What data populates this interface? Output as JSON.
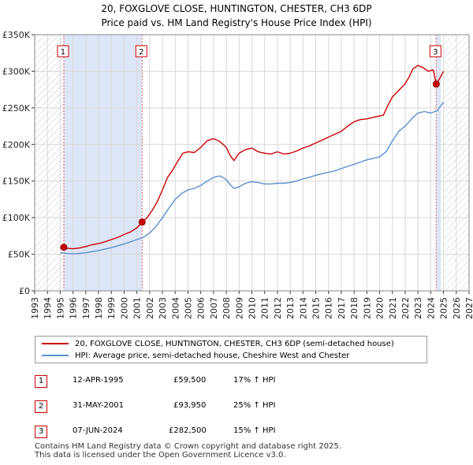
{
  "title": "20, FOXGLOVE CLOSE, HUNTINGTON, CHESTER, CH3 6DP",
  "subtitle": "Price paid vs. HM Land Registry's House Price Index (HPI)",
  "legend": {
    "property": "20, FOXGLOVE CLOSE, HUNTINGTON, CHESTER, CH3 6DP (semi-detached house)",
    "hpi": "HPI: Average price, semi-detached house, Cheshire West and Chester"
  },
  "sales": [
    {
      "num": "1",
      "date": "12-APR-1995",
      "price": "£59,500",
      "hpi": "17% ↑ HPI"
    },
    {
      "num": "2",
      "date": "31-MAY-2001",
      "price": "£93,950",
      "hpi": "25% ↑ HPI"
    },
    {
      "num": "3",
      "date": "07-JUN-2024",
      "price": "£282,500",
      "hpi": "15% ↑ HPI"
    }
  ],
  "footer": [
    "Contains HM Land Registry data © Crown copyright and database right 2025.",
    "This data is licensed under the Open Government Licence v3.0."
  ],
  "chart_data": {
    "type": "line",
    "xlim": [
      1993,
      2027
    ],
    "ylim": [
      0,
      350000
    ],
    "xticks": [
      1993,
      1994,
      1995,
      1996,
      1997,
      1998,
      1999,
      2000,
      2001,
      2002,
      2003,
      2004,
      2005,
      2006,
      2007,
      2008,
      2009,
      2010,
      2011,
      2012,
      2013,
      2014,
      2015,
      2016,
      2017,
      2018,
      2019,
      2020,
      2021,
      2022,
      2023,
      2024,
      2025,
      2026,
      2027
    ],
    "yticks": [
      {
        "value": 0,
        "label": "£0"
      },
      {
        "value": 50000,
        "label": "£50K"
      },
      {
        "value": 100000,
        "label": "£100K"
      },
      {
        "value": 150000,
        "label": "£150K"
      },
      {
        "value": 200000,
        "label": "£200K"
      },
      {
        "value": 250000,
        "label": "£250K"
      },
      {
        "value": 300000,
        "label": "£300K"
      },
      {
        "value": 350000,
        "label": "£350K"
      }
    ],
    "grid": true,
    "colors": {
      "property": "#cc0000",
      "hpi": "#5b8fd0",
      "shade": "#dde6f7",
      "vline": "#e06060"
    },
    "shaded_ranges": [
      [
        1995.28,
        2001.41
      ],
      [
        2024.43,
        2024.8
      ]
    ],
    "hatched_ranges": [
      [
        1993,
        1995.28
      ],
      [
        2025.0,
        2027
      ]
    ],
    "sales_markers": [
      {
        "label": "1",
        "x": 1995.28,
        "y": 59500
      },
      {
        "label": "2",
        "x": 2001.41,
        "y": 93950
      },
      {
        "label": "3",
        "x": 2024.43,
        "y": 282500
      }
    ],
    "series": [
      {
        "name": "20, FOXGLOVE CLOSE, HUNTINGTON, CHESTER, CH3 6DP (semi-detached house)",
        "x": [
          1995.28,
          1995.5,
          1996,
          1996.5,
          1997,
          1997.5,
          1998,
          1998.5,
          1999,
          1999.5,
          2000,
          2000.5,
          2001,
          2001.41,
          2001.8,
          2002.2,
          2002.6,
          2003,
          2003.4,
          2003.8,
          2004.2,
          2004.6,
          2005,
          2005.5,
          2006,
          2006.5,
          2007,
          2007.5,
          2008,
          2008.3,
          2008.6,
          2009,
          2009.5,
          2010,
          2010.5,
          2011,
          2011.5,
          2012,
          2012.5,
          2013,
          2013.5,
          2014,
          2014.5,
          2015,
          2015.5,
          2016,
          2016.5,
          2017,
          2017.5,
          2018,
          2018.5,
          2019,
          2019.5,
          2020,
          2020.3,
          2020.6,
          2021,
          2021.5,
          2022,
          2022.3,
          2022.6,
          2023,
          2023.4,
          2023.8,
          2024.2,
          2024.43,
          2024.7,
          2025
        ],
        "y": [
          59500,
          58000,
          57500,
          58500,
          60500,
          63000,
          64500,
          67000,
          70000,
          73000,
          77000,
          80500,
          86000,
          93950,
          100000,
          110000,
          122000,
          138000,
          155000,
          165000,
          177000,
          188000,
          190000,
          189000,
          196000,
          205000,
          208000,
          204000,
          196000,
          185000,
          178000,
          188000,
          193000,
          195000,
          190000,
          188000,
          187000,
          190000,
          187000,
          188000,
          191000,
          195000,
          198000,
          202000,
          206000,
          210000,
          214000,
          218000,
          225000,
          231000,
          234000,
          235000,
          237000,
          239000,
          240000,
          252000,
          265000,
          274000,
          283000,
          292000,
          303000,
          308000,
          305000,
          300000,
          302000,
          282500,
          290000,
          300000
        ]
      },
      {
        "name": "HPI: Average price, semi-detached house, Cheshire West and Chester",
        "x": [
          1995,
          1995.5,
          1996,
          1996.5,
          1997,
          1997.5,
          1998,
          1998.5,
          1999,
          1999.5,
          2000,
          2000.5,
          2001,
          2001.5,
          2002,
          2002.5,
          2003,
          2003.5,
          2004,
          2004.5,
          2005,
          2005.5,
          2006,
          2006.5,
          2007,
          2007.5,
          2008,
          2008.3,
          2008.6,
          2009,
          2009.5,
          2010,
          2010.5,
          2011,
          2011.5,
          2012,
          2012.5,
          2013,
          2013.5,
          2014,
          2014.5,
          2015,
          2015.5,
          2016,
          2016.5,
          2017,
          2017.5,
          2018,
          2018.5,
          2019,
          2019.5,
          2020,
          2020.5,
          2021,
          2021.5,
          2022,
          2022.5,
          2023,
          2023.5,
          2024,
          2024.5,
          2025
        ],
        "y": [
          52000,
          51000,
          50500,
          51000,
          52000,
          53500,
          55000,
          57000,
          59000,
          61500,
          64000,
          67000,
          70000,
          73000,
          79000,
          88000,
          100000,
          113000,
          125000,
          133000,
          138000,
          140000,
          144000,
          150000,
          155000,
          157000,
          152000,
          145000,
          140000,
          142000,
          147000,
          149000,
          148000,
          146000,
          146000,
          147000,
          147000,
          148000,
          150000,
          153000,
          155000,
          158000,
          160000,
          162000,
          164000,
          167000,
          170000,
          173000,
          176000,
          179000,
          181000,
          183000,
          190000,
          205000,
          218000,
          225000,
          235000,
          243000,
          245000,
          243000,
          246000,
          258000
        ]
      }
    ]
  }
}
